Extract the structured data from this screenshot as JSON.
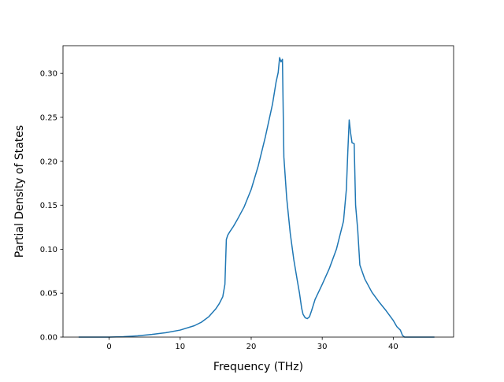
{
  "chart_data": {
    "type": "line",
    "title": "",
    "xlabel": "Frequency (THz)",
    "ylabel": "Partial Density of States",
    "xlim": [
      -6.5,
      48.5
    ],
    "ylim": [
      0.0,
      0.3315
    ],
    "xticks": [
      0,
      10,
      20,
      30,
      40
    ],
    "xtick_labels": [
      "0",
      "10",
      "20",
      "30",
      "40"
    ],
    "yticks": [
      0.0,
      0.05,
      0.1,
      0.15,
      0.2,
      0.25,
      0.3
    ],
    "ytick_labels": [
      "0.00",
      "0.05",
      "0.10",
      "0.15",
      "0.20",
      "0.25",
      "0.30"
    ],
    "grid": false,
    "legend": "none",
    "series": [
      {
        "color": "#1f77b4",
        "x": [
          -4.3,
          0,
          2,
          4,
          6,
          8,
          10,
          12,
          13,
          14,
          15,
          15.5,
          16.0,
          16.3,
          16.5,
          16.7,
          17,
          17.5,
          18,
          19,
          20,
          21,
          22,
          23,
          23.5,
          23.8,
          24.0,
          24.2,
          24.4,
          24.6,
          25.0,
          25.5,
          26.0,
          26.5,
          26.8,
          27.1,
          27.3,
          27.6,
          27.9,
          28.2,
          28.5,
          29.0,
          30,
          31,
          32,
          33,
          33.4,
          33.6,
          33.8,
          34.0,
          34.2,
          34.5,
          34.7,
          35.0,
          35.3,
          36,
          37,
          38,
          39,
          40,
          40.5,
          41.0,
          41.3,
          41.6,
          42.0,
          45.8
        ],
        "y": [
          0.0,
          0.0,
          0.0005,
          0.0015,
          0.003,
          0.005,
          0.008,
          0.013,
          0.017,
          0.023,
          0.032,
          0.038,
          0.046,
          0.06,
          0.111,
          0.116,
          0.12,
          0.126,
          0.133,
          0.148,
          0.168,
          0.195,
          0.228,
          0.265,
          0.29,
          0.301,
          0.318,
          0.313,
          0.316,
          0.205,
          0.158,
          0.118,
          0.088,
          0.064,
          0.05,
          0.033,
          0.026,
          0.022,
          0.021,
          0.023,
          0.03,
          0.043,
          0.06,
          0.078,
          0.1,
          0.132,
          0.168,
          0.21,
          0.247,
          0.232,
          0.221,
          0.22,
          0.15,
          0.122,
          0.082,
          0.066,
          0.051,
          0.04,
          0.03,
          0.019,
          0.012,
          0.008,
          0.002,
          0.0,
          0.0,
          0.0
        ]
      }
    ]
  }
}
